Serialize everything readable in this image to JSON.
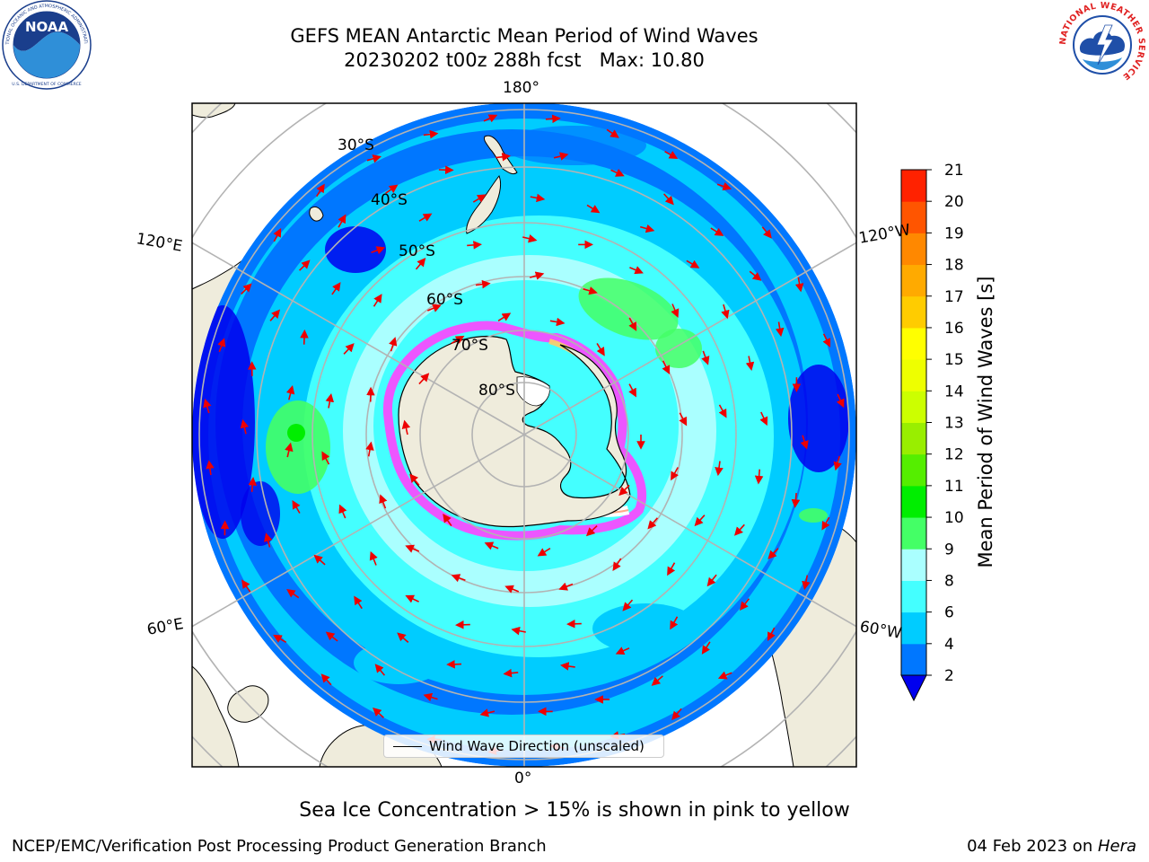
{
  "header": {
    "title_line1": "GEFS MEAN Antarctic Mean Period of Wind Waves",
    "title_line2": "20230202 t00z 288h fcst   Max: 10.80"
  },
  "logos": {
    "left": "NOAA",
    "left_ring_text": "NATIONAL OCEANIC AND ATMOSPHERIC ADMINISTRATION",
    "left_bottom_text": "U.S. DEPARTMENT OF COMMERCE",
    "right_ring_text": "NATIONAL WEATHER SERVICE"
  },
  "map": {
    "projection": "south-polar-stereographic",
    "lon_labels": [
      "180°",
      "120°E",
      "120°W",
      "60°E",
      "60°W",
      "0°"
    ],
    "lat_labels": [
      "30°S",
      "40°S",
      "50°S",
      "60°S",
      "70°S",
      "80°S"
    ],
    "legend_label": "Wind Wave Direction (unscaled)"
  },
  "colorbar": {
    "label": "Mean Period of Wind Waves [s]",
    "ticks": [
      "2",
      "4",
      "6",
      "8",
      "9",
      "10",
      "11",
      "12",
      "13",
      "14",
      "15",
      "16",
      "17",
      "18",
      "19",
      "20",
      "21"
    ],
    "colors": [
      "#0077ff",
      "#00ccff",
      "#44ffff",
      "#aaffff",
      "#44ff66",
      "#00ee00",
      "#55ee00",
      "#99ee00",
      "#ccff00",
      "#eeff00",
      "#ffff00",
      "#ffcc00",
      "#ffaa00",
      "#ff8800",
      "#ff5500",
      "#ff2200",
      "#ff0000"
    ],
    "under_color": "#0000ee"
  },
  "footer": {
    "note": "Sea Ice Concentration > 15% is shown in pink to yellow",
    "credit": "NCEP/EMC/Verification Post Processing Product Generation Branch",
    "date": "04 Feb 2023 on ",
    "host": "Hera"
  }
}
